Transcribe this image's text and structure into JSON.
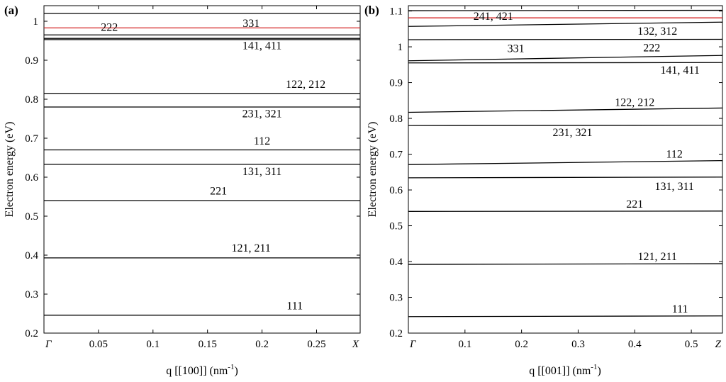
{
  "chart_data": [
    {
      "type": "line",
      "panel_label": "(a)",
      "xlabel": "q [[100]] (nm",
      "xlabel_sup": "-1",
      "xlabel_suffix": ")",
      "ylabel": "Electron energy (eV)",
      "xlim": [
        0,
        0.29
      ],
      "ylim": [
        0.2,
        1.04
      ],
      "xticks": [
        {
          "value": 0,
          "label": "Γ"
        },
        {
          "value": 0.05,
          "label": "0.05"
        },
        {
          "value": 0.1,
          "label": "0.1"
        },
        {
          "value": 0.15,
          "label": "0.15"
        },
        {
          "value": 0.2,
          "label": "0.2"
        },
        {
          "value": 0.25,
          "label": "0.25"
        },
        {
          "value": 0.29,
          "label": "X"
        }
      ],
      "yticks": [
        "0.2",
        "0.3",
        "0.4",
        "0.5",
        "0.6",
        "0.7",
        "0.8",
        "0.9",
        "1"
      ],
      "series": [
        {
          "y": [
            0.246,
            0.246
          ]
        },
        {
          "y": [
            0.393,
            0.393
          ]
        },
        {
          "y": [
            0.54,
            0.54
          ]
        },
        {
          "y": [
            0.633,
            0.633
          ]
        },
        {
          "y": [
            0.67,
            0.67
          ]
        },
        {
          "y": [
            0.78,
            0.78
          ]
        },
        {
          "y": [
            0.815,
            0.815
          ]
        },
        {
          "y": [
            0.953,
            0.953
          ]
        },
        {
          "y": [
            0.956,
            0.956
          ]
        },
        {
          "y": [
            0.965,
            0.965
          ]
        },
        {
          "y": [
            0.983,
            0.983
          ],
          "color": "#d42020"
        },
        {
          "y": [
            1.02,
            1.02
          ]
        }
      ],
      "annotations": [
        {
          "text": "111",
          "x": 0.23,
          "y": 0.27
        },
        {
          "text": "121, 211",
          "x": 0.19,
          "y": 0.418
        },
        {
          "text": "221",
          "x": 0.16,
          "y": 0.565
        },
        {
          "text": "131, 311",
          "x": 0.2,
          "y": 0.615
        },
        {
          "text": "112",
          "x": 0.2,
          "y": 0.693
        },
        {
          "text": "231, 321",
          "x": 0.2,
          "y": 0.763
        },
        {
          "text": "122, 212",
          "x": 0.24,
          "y": 0.838
        },
        {
          "text": "141, 411",
          "x": 0.2,
          "y": 0.937
        },
        {
          "text": "222",
          "x": 0.06,
          "y": 0.985
        },
        {
          "text": "331",
          "x": 0.19,
          "y": 0.995
        }
      ]
    },
    {
      "type": "line",
      "panel_label": "(b)",
      "xlabel": "q [[001]] (nm",
      "xlabel_sup": "-1",
      "xlabel_suffix": ")",
      "ylabel": "Electron energy (eV)",
      "xlim": [
        0,
        0.555
      ],
      "ylim": [
        0.2,
        1.115
      ],
      "xticks": [
        {
          "value": 0,
          "label": "Γ"
        },
        {
          "value": 0.1,
          "label": "0.1"
        },
        {
          "value": 0.2,
          "label": "0.2"
        },
        {
          "value": 0.3,
          "label": "0.3"
        },
        {
          "value": 0.4,
          "label": "0.4"
        },
        {
          "value": 0.5,
          "label": "0.5"
        },
        {
          "value": 0.555,
          "label": "Z"
        }
      ],
      "yticks": [
        "0.2",
        "0.3",
        "0.4",
        "0.5",
        "0.6",
        "0.7",
        "0.8",
        "0.9",
        "1",
        "1.1"
      ],
      "series": [
        {
          "y": [
            0.246,
            0.248
          ]
        },
        {
          "y": [
            0.392,
            0.394
          ]
        },
        {
          "y": [
            0.54,
            0.541
          ]
        },
        {
          "y": [
            0.634,
            0.636
          ]
        },
        {
          "y": [
            0.671,
            0.682
          ]
        },
        {
          "y": [
            0.78,
            0.781
          ]
        },
        {
          "y": [
            0.817,
            0.829
          ]
        },
        {
          "y": [
            0.955,
            0.956
          ]
        },
        {
          "y": [
            0.961,
            0.976
          ]
        },
        {
          "y": [
            1.02,
            1.021
          ]
        },
        {
          "y": [
            1.057,
            1.069
          ]
        },
        {
          "y": [
            1.081,
            1.081
          ],
          "color": "#d42020"
        },
        {
          "y": [
            1.101,
            1.102
          ]
        }
      ],
      "annotations": [
        {
          "text": "111",
          "x": 0.48,
          "y": 0.267
        },
        {
          "text": "121, 211",
          "x": 0.44,
          "y": 0.414
        },
        {
          "text": "221",
          "x": 0.4,
          "y": 0.56
        },
        {
          "text": "131, 311",
          "x": 0.47,
          "y": 0.61
        },
        {
          "text": "112",
          "x": 0.47,
          "y": 0.7
        },
        {
          "text": "231, 321",
          "x": 0.29,
          "y": 0.76
        },
        {
          "text": "122, 212",
          "x": 0.4,
          "y": 0.845
        },
        {
          "text": "141, 411",
          "x": 0.48,
          "y": 0.935
        },
        {
          "text": "331",
          "x": 0.19,
          "y": 0.995
        },
        {
          "text": "222",
          "x": 0.43,
          "y": 0.997
        },
        {
          "text": "132, 312",
          "x": 0.44,
          "y": 1.044
        },
        {
          "text": "241, 421",
          "x": 0.15,
          "y": 1.085
        }
      ]
    }
  ]
}
